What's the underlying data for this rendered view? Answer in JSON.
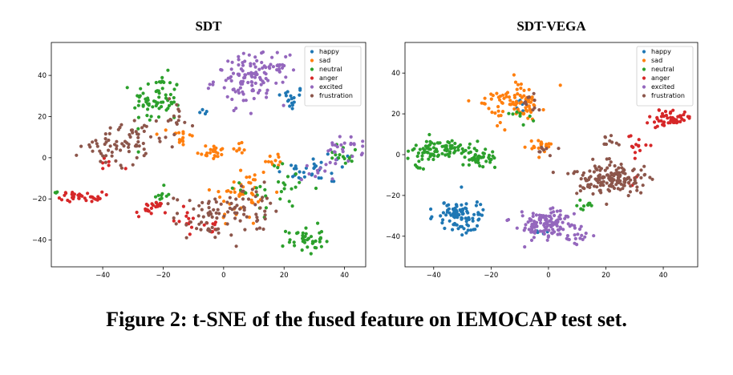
{
  "caption": "Figure 2: t-SNE of the fused feature on IEMOCAP test set.",
  "colors": {
    "happy": "#1f77b4",
    "sad": "#ff7f0e",
    "neutral": "#2ca02c",
    "anger": "#d62728",
    "excited": "#9467bd",
    "frustration": "#8c564b"
  },
  "chart_data": [
    {
      "type": "scatter",
      "title": "SDT",
      "xlim": [
        -57,
        47
      ],
      "ylim": [
        -53,
        56
      ],
      "xticks": [
        -40,
        -20,
        0,
        20,
        40
      ],
      "yticks": [
        -40,
        -20,
        0,
        20,
        40
      ],
      "legend_position": "top-right",
      "series": [
        {
          "name": "happy",
          "clusters": [
            {
              "x": 22,
              "y": 29,
              "sx": 2.5,
              "sy": 3,
              "n": 18
            },
            {
              "x": 24,
              "y": -8,
              "sx": 3,
              "sy": 3,
              "n": 14
            },
            {
              "x": 35,
              "y": -5,
              "sx": 4,
              "sy": 4,
              "n": 20
            },
            {
              "x": -5,
              "y": 22,
              "sx": 1.5,
              "sy": 1,
              "n": 4
            }
          ]
        },
        {
          "name": "sad",
          "clusters": [
            {
              "x": -4,
              "y": 3,
              "sx": 2.5,
              "sy": 2,
              "n": 22
            },
            {
              "x": 5,
              "y": 5,
              "sx": 1.5,
              "sy": 1.5,
              "n": 8
            },
            {
              "x": -14,
              "y": 10,
              "sx": 2,
              "sy": 3,
              "n": 16
            },
            {
              "x": 6,
              "y": -18,
              "sx": 5,
              "sy": 8,
              "n": 45
            },
            {
              "x": 17,
              "y": -1,
              "sx": 2,
              "sy": 2,
              "n": 10
            }
          ]
        },
        {
          "name": "neutral",
          "clusters": [
            {
              "x": -22,
              "y": 28,
              "sx": 4,
              "sy": 6,
              "n": 70
            },
            {
              "x": -21,
              "y": -18,
              "sx": 2,
              "sy": 2,
              "n": 10
            },
            {
              "x": 27,
              "y": -40,
              "sx": 3,
              "sy": 3.5,
              "n": 40
            },
            {
              "x": 18,
              "y": -15,
              "sx": 6,
              "sy": 6,
              "n": 30
            },
            {
              "x": 40,
              "y": 2,
              "sx": 3,
              "sy": 3,
              "n": 15
            },
            {
              "x": -55,
              "y": -17,
              "sx": 1,
              "sy": 1,
              "n": 3
            }
          ]
        },
        {
          "name": "anger",
          "clusters": [
            {
              "x": -47,
              "y": -19,
              "sx": 3.5,
              "sy": 1.2,
              "n": 35
            },
            {
              "x": -24,
              "y": -25,
              "sx": 2.5,
              "sy": 2,
              "n": 22
            },
            {
              "x": -13,
              "y": -30,
              "sx": 2,
              "sy": 2.5,
              "n": 12
            },
            {
              "x": -4,
              "y": -34,
              "sx": 2,
              "sy": 2,
              "n": 8
            },
            {
              "x": -38,
              "y": -3,
              "sx": 2,
              "sy": 2,
              "n": 6
            }
          ]
        },
        {
          "name": "excited",
          "clusters": [
            {
              "x": 9,
              "y": 38,
              "sx": 6,
              "sy": 6,
              "n": 110
            },
            {
              "x": 18,
              "y": 46,
              "sx": 3,
              "sy": 3,
              "n": 15
            },
            {
              "x": 40,
              "y": 4,
              "sx": 3,
              "sy": 3,
              "n": 25
            },
            {
              "x": 32,
              "y": -5,
              "sx": 3,
              "sy": 3,
              "n": 12
            }
          ]
        },
        {
          "name": "frustration",
          "clusters": [
            {
              "x": -35,
              "y": 6,
              "sx": 6,
              "sy": 5,
              "n": 55
            },
            {
              "x": -28,
              "y": 12,
              "sx": 4,
              "sy": 4,
              "n": 20
            },
            {
              "x": -4,
              "y": -28,
              "sx": 6,
              "sy": 5,
              "n": 55
            },
            {
              "x": 9,
              "y": -25,
              "sx": 6,
              "sy": 6,
              "n": 35
            },
            {
              "x": -16,
              "y": 20,
              "sx": 3,
              "sy": 5,
              "n": 15
            },
            {
              "x": -6,
              "y": -35,
              "sx": 3,
              "sy": 2,
              "n": 10
            }
          ]
        }
      ]
    },
    {
      "type": "scatter",
      "title": "SDT-VEGA",
      "xlim": [
        -50,
        52
      ],
      "ylim": [
        -55,
        55
      ],
      "xticks": [
        -40,
        -20,
        0,
        20,
        40
      ],
      "yticks": [
        -40,
        -20,
        0,
        20,
        40
      ],
      "legend_position": "top-right",
      "series": [
        {
          "name": "happy",
          "clusters": [
            {
              "x": -31,
              "y": -30,
              "sx": 4,
              "sy": 4,
              "n": 90
            },
            {
              "x": -3,
              "y": -37,
              "sx": 1.5,
              "sy": 1.5,
              "n": 4
            },
            {
              "x": -10,
              "y": 24,
              "sx": 1.5,
              "sy": 2,
              "n": 5
            }
          ]
        },
        {
          "name": "sad",
          "clusters": [
            {
              "x": -15,
              "y": 24,
              "sx": 4,
              "sy": 4,
              "n": 60
            },
            {
              "x": -8,
              "y": 27,
              "sx": 3,
              "sy": 5,
              "n": 30
            },
            {
              "x": -3,
              "y": 4,
              "sx": 2.5,
              "sy": 2,
              "n": 18
            }
          ]
        },
        {
          "name": "neutral",
          "clusters": [
            {
              "x": -37,
              "y": 2,
              "sx": 6,
              "sy": 2.5,
              "n": 90
            },
            {
              "x": -25,
              "y": -2,
              "sx": 4,
              "sy": 2,
              "n": 35
            },
            {
              "x": -45,
              "y": -7,
              "sx": 1,
              "sy": 1.2,
              "n": 6
            },
            {
              "x": -11,
              "y": 19,
              "sx": 2,
              "sy": 2,
              "n": 8
            },
            {
              "x": 13,
              "y": -25,
              "sx": 2,
              "sy": 2,
              "n": 10
            }
          ]
        },
        {
          "name": "anger",
          "clusters": [
            {
              "x": 42,
              "y": 18,
              "sx": 4,
              "sy": 2,
              "n": 55
            },
            {
              "x": 31,
              "y": 5,
              "sx": 2,
              "sy": 2.5,
              "n": 14
            },
            {
              "x": 28,
              "y": -12,
              "sx": 1.5,
              "sy": 2,
              "n": 6
            }
          ]
        },
        {
          "name": "excited",
          "clusters": [
            {
              "x": -1,
              "y": -34,
              "sx": 6,
              "sy": 4,
              "n": 120
            },
            {
              "x": 10,
              "y": -40,
              "sx": 2.5,
              "sy": 2,
              "n": 15
            }
          ]
        },
        {
          "name": "frustration",
          "clusters": [
            {
              "x": 21,
              "y": -12,
              "sx": 7,
              "sy": 4,
              "n": 160
            },
            {
              "x": -8,
              "y": 25,
              "sx": 2,
              "sy": 3,
              "n": 10
            },
            {
              "x": -1,
              "y": 3,
              "sx": 2,
              "sy": 2,
              "n": 8
            },
            {
              "x": 22,
              "y": 6,
              "sx": 2,
              "sy": 2,
              "n": 10
            }
          ]
        }
      ]
    }
  ]
}
